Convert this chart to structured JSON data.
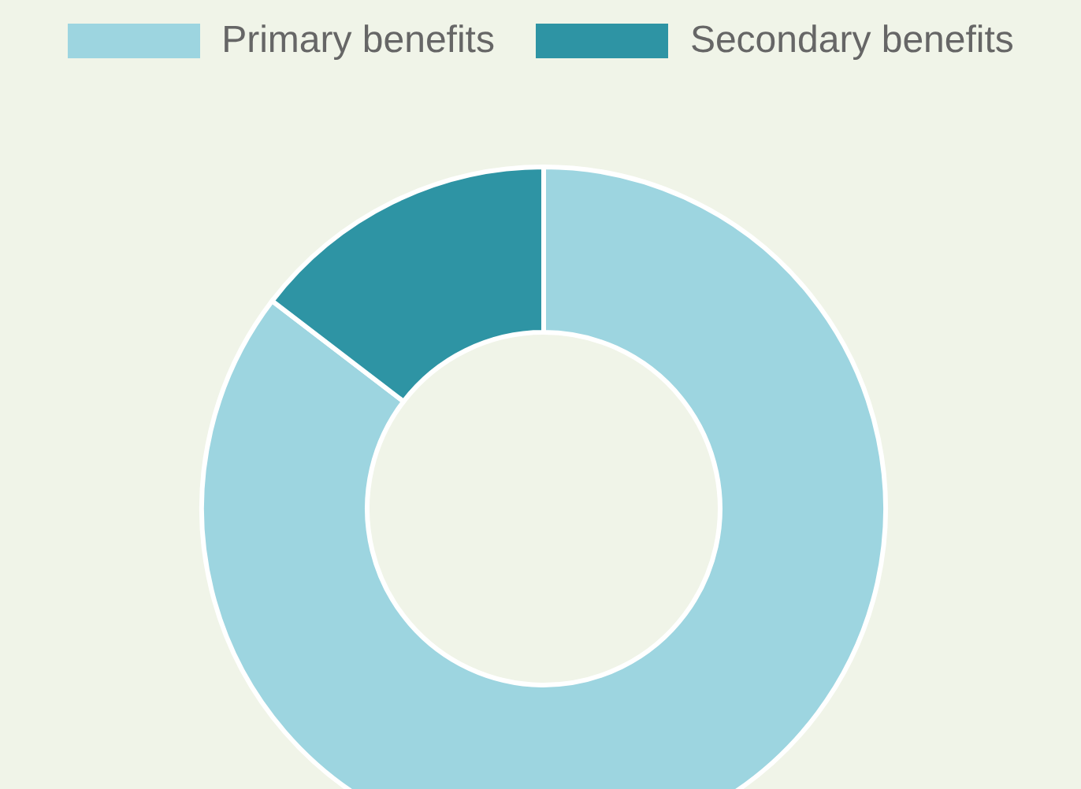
{
  "chart_data": {
    "type": "donut",
    "categories": [
      "Primary benefits",
      "Secondary benefits"
    ],
    "values": [
      85.4,
      14.6
    ],
    "colors": [
      "#9dd5e0",
      "#2e94a4"
    ],
    "legend": "top"
  }
}
